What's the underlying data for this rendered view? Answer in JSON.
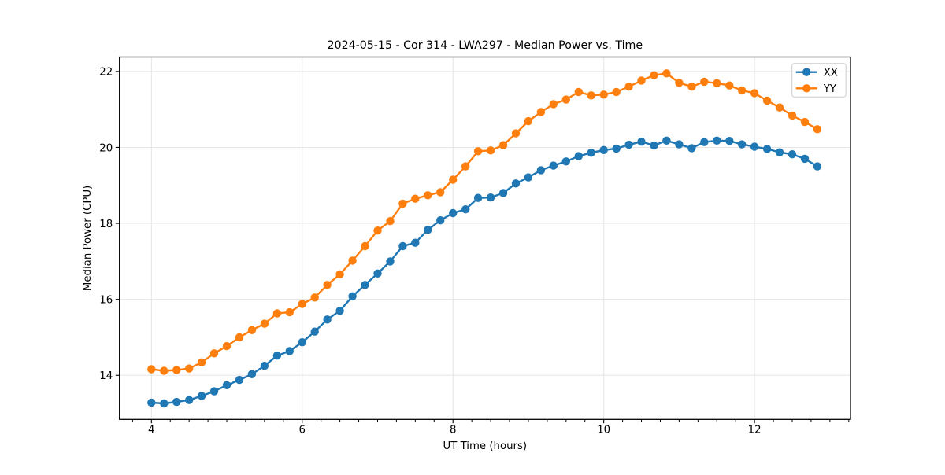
{
  "figure": {
    "title": "2024-05-15 - Cor 314 - LWA297 - Median Power vs. Time"
  },
  "chart_data": {
    "type": "line",
    "title": "2024-05-15 - Cor 314 - LWA297 - Median Power vs. Time",
    "xlabel": "UT Time (hours)",
    "ylabel": "Median Power (CPU)",
    "xlim": [
      3.576,
      13.273
    ],
    "ylim": [
      12.84,
      22.38
    ],
    "x_ticks": [
      4,
      6,
      8,
      10,
      12
    ],
    "y_ticks": [
      14,
      16,
      18,
      20,
      22
    ],
    "x_minor_tick_step": 0.25,
    "grid": true,
    "grid_color": "#e5e5e5",
    "legend": {
      "position": "upper right",
      "entries": [
        "XX",
        "YY"
      ]
    },
    "x": [
      4.0,
      4.167,
      4.333,
      4.5,
      4.667,
      4.833,
      5.0,
      5.167,
      5.333,
      5.5,
      5.667,
      5.833,
      6.0,
      6.167,
      6.333,
      6.5,
      6.667,
      6.833,
      7.0,
      7.167,
      7.333,
      7.5,
      7.667,
      7.833,
      8.0,
      8.167,
      8.333,
      8.5,
      8.667,
      8.833,
      9.0,
      9.167,
      9.333,
      9.5,
      9.667,
      9.833,
      10.0,
      10.167,
      10.333,
      10.5,
      10.667,
      10.833,
      11.0,
      11.167,
      11.333,
      11.5,
      11.667,
      11.833,
      12.0,
      12.167,
      12.333,
      12.5,
      12.667,
      12.833
    ],
    "series": [
      {
        "name": "XX",
        "color": "#1f77b4",
        "values": [
          13.28,
          13.26,
          13.3,
          13.35,
          13.46,
          13.58,
          13.74,
          13.88,
          14.03,
          14.25,
          14.52,
          14.64,
          14.87,
          15.15,
          15.47,
          15.7,
          16.08,
          16.38,
          16.68,
          17.0,
          17.4,
          17.49,
          17.83,
          18.08,
          18.27,
          18.37,
          18.67,
          18.68,
          18.8,
          19.05,
          19.21,
          19.4,
          19.52,
          19.63,
          19.77,
          19.86,
          19.93,
          19.97,
          20.07,
          20.15,
          20.05,
          20.18,
          20.08,
          19.98,
          20.14,
          20.18,
          20.17,
          20.08,
          20.02,
          19.96,
          19.87,
          19.82,
          19.7,
          19.5
        ]
      },
      {
        "name": "YY",
        "color": "#ff7f0e",
        "values": [
          14.16,
          14.12,
          14.14,
          14.18,
          14.34,
          14.58,
          14.77,
          15.0,
          15.19,
          15.36,
          15.63,
          15.66,
          15.88,
          16.05,
          16.38,
          16.66,
          17.02,
          17.4,
          17.81,
          18.06,
          18.52,
          18.65,
          18.74,
          18.82,
          19.15,
          19.5,
          19.9,
          19.92,
          20.06,
          20.37,
          20.69,
          20.93,
          21.14,
          21.26,
          21.46,
          21.37,
          21.39,
          21.46,
          21.6,
          21.76,
          21.9,
          21.95,
          21.7,
          21.6,
          21.73,
          21.69,
          21.63,
          21.5,
          21.43,
          21.23,
          21.05,
          20.84,
          20.67,
          20.48
        ]
      }
    ]
  }
}
